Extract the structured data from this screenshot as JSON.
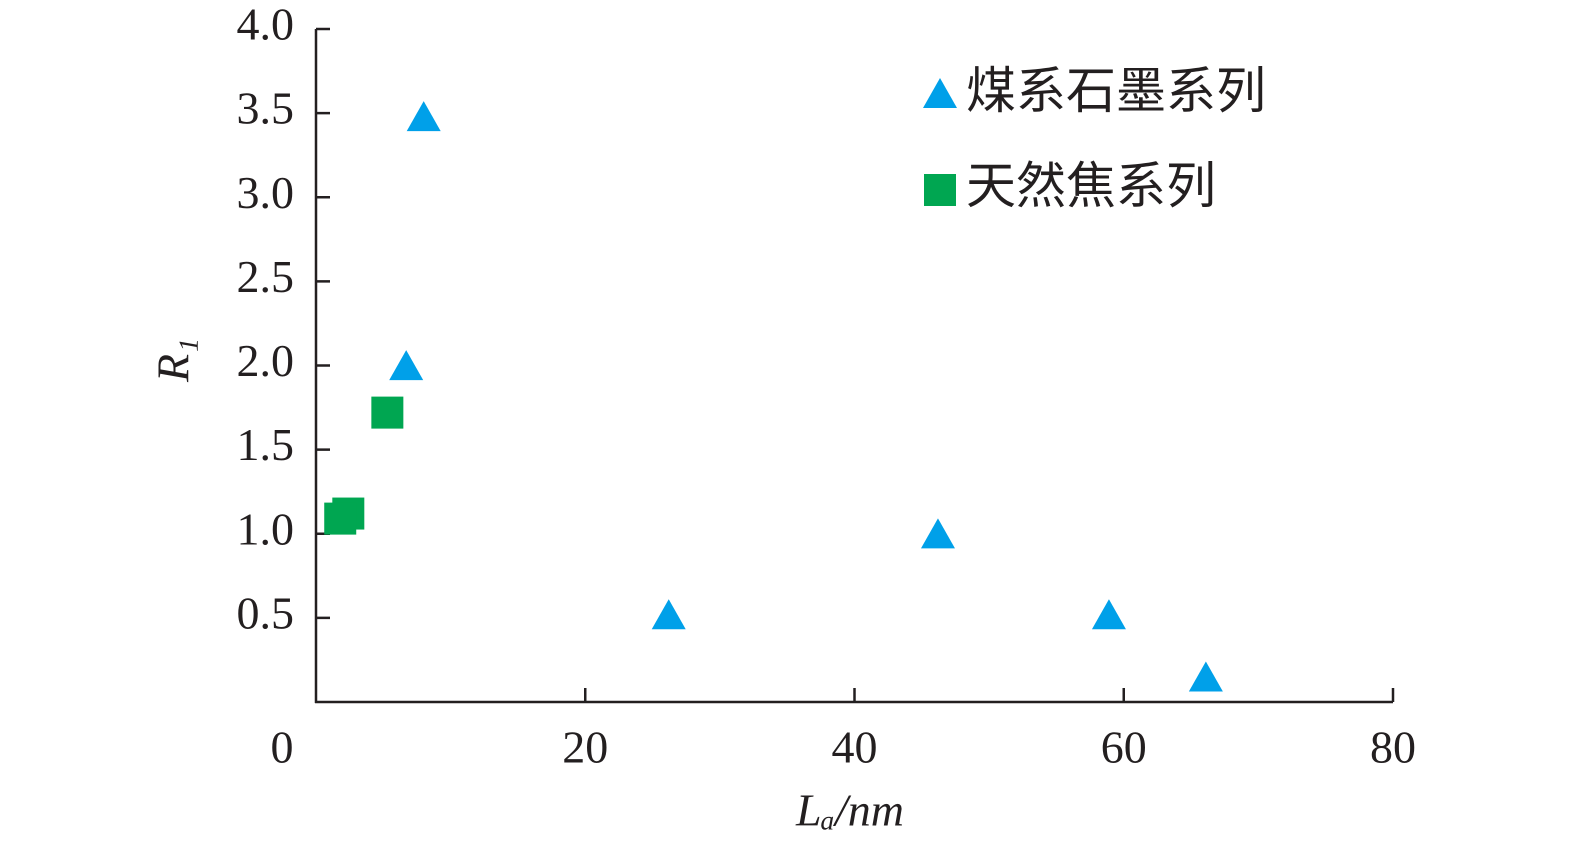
{
  "chart_data": {
    "type": "scatter",
    "xlabel": "Lₐ/nm",
    "ylabel": "R₁",
    "xlim": [
      0,
      80
    ],
    "xticks": [
      0,
      20,
      40,
      60,
      80
    ],
    "ylim": [
      0,
      4
    ],
    "yticks": [
      0.5,
      {
        "value": 1,
        "label": "1.0"
      },
      1.5,
      {
        "value": 2,
        "label": "2.0"
      },
      2.5,
      {
        "value": 3,
        "label": "3.0"
      },
      3.5,
      {
        "value": 4,
        "label": "4.0"
      }
    ],
    "legend": "upper right",
    "series": [
      {
        "name": "煤系石墨系列",
        "color": "#00a0e9",
        "marker": "triangle",
        "x": [
          8.0,
          6.7,
          26.2,
          46.2,
          58.9,
          66.1
        ],
        "values": [
          3.47,
          1.99,
          0.51,
          0.99,
          0.51,
          0.14
        ]
      },
      {
        "name": "天然焦系列",
        "color": "#00a651",
        "marker": "square",
        "x": [
          5.3,
          2.4,
          1.8
        ],
        "values": [
          1.72,
          1.12,
          1.09
        ]
      }
    ]
  }
}
